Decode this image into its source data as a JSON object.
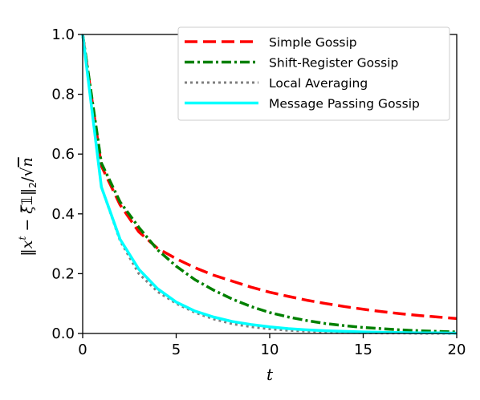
{
  "chart_data": {
    "type": "line",
    "title": "",
    "xlabel": "t",
    "ylabel": "‖x^t − ξ̄𝟙‖₂/√n",
    "xlim": [
      0,
      20
    ],
    "ylim": [
      0,
      1.0
    ],
    "xticks": [
      0,
      5,
      10,
      15,
      20
    ],
    "yticks": [
      0.0,
      0.2,
      0.4,
      0.6,
      0.8,
      1.0
    ],
    "xtick_labels": [
      "0",
      "5",
      "10",
      "15",
      "20"
    ],
    "ytick_labels": [
      "0.0",
      "0.2",
      "0.4",
      "0.6",
      "0.8",
      "1.0"
    ],
    "grid": false,
    "legend_position": "top-right",
    "x": [
      0,
      1,
      2,
      3,
      4,
      5,
      6,
      7,
      8,
      9,
      10,
      11,
      12,
      13,
      14,
      15,
      16,
      17,
      18,
      19,
      20
    ],
    "series": [
      {
        "name": "Simple Gossip",
        "color": "#ff0000",
        "dash": "dashed",
        "values": [
          1.0,
          0.56,
          0.43,
          0.34,
          0.285,
          0.25,
          0.22,
          0.195,
          0.175,
          0.155,
          0.138,
          0.124,
          0.111,
          0.1,
          0.09,
          0.081,
          0.073,
          0.066,
          0.06,
          0.055,
          0.05
        ]
      },
      {
        "name": "Shift-Register Gossip",
        "color": "#008000",
        "dash": "dashdot",
        "values": [
          1.0,
          0.57,
          0.44,
          0.355,
          0.28,
          0.225,
          0.18,
          0.145,
          0.115,
          0.09,
          0.07,
          0.055,
          0.043,
          0.033,
          0.026,
          0.02,
          0.016,
          0.012,
          0.009,
          0.007,
          0.005
        ]
      },
      {
        "name": "Local Averaging",
        "color": "#808080",
        "dash": "dotted",
        "values": [
          1.0,
          0.49,
          0.31,
          0.2,
          0.14,
          0.1,
          0.07,
          0.048,
          0.032,
          0.022,
          0.015,
          0.01,
          0.007,
          0.005,
          0.003,
          0.002,
          0.001,
          0.001,
          0.0,
          0.0,
          0.0
        ]
      },
      {
        "name": "Message Passing Gossip",
        "color": "#00ffff",
        "dash": "solid",
        "values": [
          1.0,
          0.49,
          0.315,
          0.215,
          0.15,
          0.105,
          0.075,
          0.055,
          0.04,
          0.03,
          0.022,
          0.016,
          0.012,
          0.009,
          0.007,
          0.005,
          0.004,
          0.003,
          0.002,
          0.002,
          0.001
        ]
      }
    ]
  }
}
